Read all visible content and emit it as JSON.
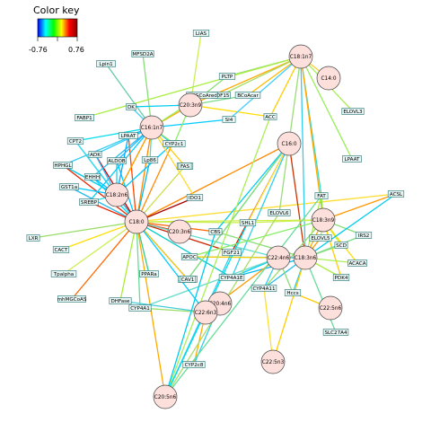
{
  "color_key": {
    "title": "Color key",
    "min_label": "-0.76",
    "max_label": "0.76",
    "gradient": [
      "#0000ff",
      "#00ffff",
      "#00ff00",
      "#ffff00",
      "#ff0000",
      "#8b0000"
    ]
  },
  "colors": {
    "node_fill": "#fde0dc",
    "node_stroke": "#444444",
    "label_fill": "#e8f7f5",
    "label_stroke": "#1f6f6f"
  },
  "nodes": [
    {
      "id": "C18:1n7",
      "label": "C18:1n7"
    },
    {
      "id": "C14:0",
      "label": "C14:0"
    },
    {
      "id": "C20:3n9",
      "label": "C20:3n9"
    },
    {
      "id": "C16:1n7",
      "label": "C16:1n7"
    },
    {
      "id": "C18:2n6",
      "label": "C18:2n6"
    },
    {
      "id": "C20:4n6",
      "label": "C20:4n6"
    },
    {
      "id": "C16:0",
      "label": "C16:0"
    },
    {
      "id": "C20:3n6",
      "label": "C20:3n6"
    },
    {
      "id": "C18:3n9",
      "label": "C18:3n9"
    },
    {
      "id": "C18:0",
      "label": "C18:0"
    },
    {
      "id": "C18:3n6",
      "label": "C18:3n6"
    },
    {
      "id": "C22:6n3",
      "label": "C22:6n3"
    },
    {
      "id": "C22:4n6",
      "label": "C22:4n6"
    },
    {
      "id": "C22:5n6",
      "label": "C22:5n6"
    },
    {
      "id": "C22:5n3",
      "label": "C22:5n3"
    },
    {
      "id": "C20:5n6",
      "label": "C20:5n6"
    }
  ],
  "genes": [
    {
      "id": "LIAS",
      "label": "LIAS"
    },
    {
      "id": "MFSD2A",
      "label": "MFSD2A"
    },
    {
      "id": "Lpin1",
      "label": "Lpin1"
    },
    {
      "id": "PLTP",
      "label": "PLTP"
    },
    {
      "id": "ELOVL3",
      "label": "ELOVL3"
    },
    {
      "id": "GDF15",
      "label": "GDF15"
    },
    {
      "id": "HMGCoAred",
      "label": "HMGCoAred"
    },
    {
      "id": "BCoAcar",
      "label": "BCoAcar"
    },
    {
      "id": "SI4",
      "label": "SI4"
    },
    {
      "id": "ACC",
      "label": "ACC"
    },
    {
      "id": "LPAAT",
      "label": "LPAAT"
    },
    {
      "id": "FABP1",
      "label": "FABP1"
    },
    {
      "id": "DK",
      "label": "DK"
    },
    {
      "id": "LPAAT2",
      "label": "LPAAT"
    },
    {
      "id": "ADRP",
      "label": "ADRP"
    },
    {
      "id": "CYP2c1",
      "label": "CYP2c1"
    },
    {
      "id": "CPT2",
      "label": "CPT2"
    },
    {
      "id": "ADK",
      "label": "ADK"
    },
    {
      "id": "ALDOB",
      "label": "ALDOB"
    },
    {
      "id": "Lp86",
      "label": "Lp86"
    },
    {
      "id": "FASN",
      "label": "FASN"
    },
    {
      "id": "HPHGL",
      "label": "HPHGL"
    },
    {
      "id": "EHHH",
      "label": "EHHH"
    },
    {
      "id": "GST1a",
      "label": "GST1a"
    },
    {
      "id": "SREBP",
      "label": "SREBP"
    },
    {
      "id": "IDO1",
      "label": "IDO1"
    },
    {
      "id": "FAS",
      "label": "FAS"
    },
    {
      "id": "ELOVL6",
      "label": "ELOVL6"
    },
    {
      "id": "FAT",
      "label": "FAT"
    },
    {
      "id": "ACSL",
      "label": "ACSL"
    },
    {
      "id": "SHL1",
      "label": "SHL1"
    },
    {
      "id": "CBS",
      "label": "CBS"
    },
    {
      "id": "ELOVL5",
      "label": "ELOVL5"
    },
    {
      "id": "FGF21",
      "label": "FGF21"
    },
    {
      "id": "APOC",
      "label": "APOC"
    },
    {
      "id": "SCD",
      "label": "SCD"
    },
    {
      "id": "IRS2",
      "label": "IRS2"
    },
    {
      "id": "ACACA",
      "label": "ACACA"
    },
    {
      "id": "LXR",
      "label": "LXR"
    },
    {
      "id": "CACT",
      "label": "CACT"
    },
    {
      "id": "PPARa",
      "label": "PPARa"
    },
    {
      "id": "PDK4",
      "label": "PDK4"
    },
    {
      "id": "ACOX1",
      "label": "ACOX1"
    },
    {
      "id": "Tpalpha",
      "label": "Tpalpha"
    },
    {
      "id": "CAV1",
      "label": "CAV1"
    },
    {
      "id": "CYP4A1E",
      "label": "CYP4A1E"
    },
    {
      "id": "CYP4A11",
      "label": "CYP4A11"
    },
    {
      "id": "mhMGCoAS",
      "label": "mhMGCoAS"
    },
    {
      "id": "DHFase",
      "label": "DHFase"
    },
    {
      "id": "Hccs",
      "label": "Hccs"
    },
    {
      "id": "CYP4A1",
      "label": "CYP4A1"
    },
    {
      "id": "SLC27A4",
      "label": "SLC27A4"
    },
    {
      "id": "CYP2c8",
      "label": "CYP2c8"
    }
  ],
  "edges": [
    {
      "a": "C18:0",
      "b": "C18:2n6",
      "color": "#cc0000"
    },
    {
      "a": "C18:0",
      "b": "C16:1n7",
      "color": "#ff8800"
    },
    {
      "a": "C18:0",
      "b": "C20:3n6",
      "color": "#ee3300"
    },
    {
      "a": "C18:0",
      "b": "FAS",
      "color": "#ccdd44"
    },
    {
      "a": "C18:0",
      "b": "IDO1",
      "color": "#aa0000"
    },
    {
      "a": "C18:0",
      "b": "CBS",
      "color": "#ff6600"
    },
    {
      "a": "C18:0",
      "b": "FGF21",
      "color": "#cc2200"
    },
    {
      "a": "C18:0",
      "b": "ACOX1",
      "color": "#2266ff"
    },
    {
      "a": "C18:0",
      "b": "CAV1",
      "color": "#ffcc00"
    },
    {
      "a": "C18:0",
      "b": "CYP4A1E",
      "color": "#00cccc"
    },
    {
      "a": "C18:0",
      "b": "LXR",
      "color": "#99dd66"
    },
    {
      "a": "C18:0",
      "b": "CACT",
      "color": "#ffdd00"
    },
    {
      "a": "C18:0",
      "b": "Tpalpha",
      "color": "#ccee55"
    },
    {
      "a": "C18:0",
      "b": "mhMGCoAS",
      "color": "#ff6600"
    },
    {
      "a": "C18:0",
      "b": "PPARa",
      "color": "#33cc88"
    },
    {
      "a": "C18:0",
      "b": "DHFase",
      "color": "#aaee33"
    },
    {
      "a": "C18:0",
      "b": "CYP4A1",
      "color": "#66dd99"
    },
    {
      "a": "C18:0",
      "b": "C22:4n6",
      "color": "#66ddcc"
    },
    {
      "a": "C18:0",
      "b": "C20:5n6",
      "color": "#ffaa00"
    },
    {
      "a": "C18:0",
      "b": "SHL1",
      "color": "#ccee55"
    },
    {
      "a": "C18:0",
      "b": "LPAAT2",
      "color": "#ff4400"
    },
    {
      "a": "C18:0",
      "b": "ADRP",
      "color": "#ff8800"
    },
    {
      "a": "C18:0",
      "b": "ADK",
      "color": "#cc0000"
    },
    {
      "a": "C18:0",
      "b": "ALDOB",
      "color": "#00ccff"
    },
    {
      "a": "C18:0",
      "b": "Lp86",
      "color": "#00bbee"
    },
    {
      "a": "C18:0",
      "b": "CPT2",
      "color": "#33ccee"
    },
    {
      "a": "C18:0",
      "b": "HPHGL",
      "color": "#ee2200"
    },
    {
      "a": "C18:0",
      "b": "EHHH",
      "color": "#00ddff"
    },
    {
      "a": "C18:0",
      "b": "GST1a",
      "color": "#22bbee"
    },
    {
      "a": "C18:0",
      "b": "SREBP",
      "color": "#ee2200"
    },
    {
      "a": "C18:0",
      "b": "C16:0",
      "color": "#ff8800"
    },
    {
      "a": "C18:0",
      "b": "ACSL",
      "color": "#ffdd33"
    },
    {
      "a": "C18:2n6",
      "b": "ADRP",
      "color": "#00ccff"
    },
    {
      "a": "C18:2n6",
      "b": "ADK",
      "color": "#33bbff"
    },
    {
      "a": "C18:2n6",
      "b": "ALDOB",
      "color": "#22ccee"
    },
    {
      "a": "C18:2n6",
      "b": "HPHGL",
      "color": "#00ccee"
    },
    {
      "a": "C18:2n6",
      "b": "EHHH",
      "color": "#00bbff"
    },
    {
      "a": "C18:2n6",
      "b": "GST1a",
      "color": "#00ccff"
    },
    {
      "a": "C18:2n6",
      "b": "SREBP",
      "color": "#22ddee"
    },
    {
      "a": "C18:2n6",
      "b": "CPT2",
      "color": "#33ddee"
    },
    {
      "a": "C18:2n6",
      "b": "LPAAT2",
      "color": "#00aaff"
    },
    {
      "a": "C18:2n6",
      "b": "C16:1n7",
      "color": "#ffcc00"
    },
    {
      "a": "C16:1n7",
      "b": "ADRP",
      "color": "#00ccff"
    },
    {
      "a": "C16:1n7",
      "b": "DK",
      "color": "#44ccee"
    },
    {
      "a": "C16:1n7",
      "b": "LPAAT2",
      "color": "#00bbff"
    },
    {
      "a": "C16:1n7",
      "b": "CPT2",
      "color": "#00ddee"
    },
    {
      "a": "C16:1n7",
      "b": "ADK",
      "color": "#33ccff"
    },
    {
      "a": "C16:1n7",
      "b": "ALDOB",
      "color": "#22bbff"
    },
    {
      "a": "C16:1n7",
      "b": "Lp86",
      "color": "#55ddaa"
    },
    {
      "a": "C16:1n7",
      "b": "CYP2c1",
      "color": "#99dd66"
    },
    {
      "a": "C16:1n7",
      "b": "FAS",
      "color": "#ffcc00"
    },
    {
      "a": "C16:1n7",
      "b": "IDO1",
      "color": "#ffdd33"
    },
    {
      "a": "C16:1n7",
      "b": "C20:3n9",
      "color": "#ffaa00"
    },
    {
      "a": "C16:1n7",
      "b": "SI4",
      "color": "#00ccff"
    },
    {
      "a": "C16:1n7",
      "b": "MFSD2A",
      "color": "#88dd77"
    },
    {
      "a": "C16:1n7",
      "b": "Lpin1",
      "color": "#66ccaa"
    },
    {
      "a": "C16:1n7",
      "b": "HMGCoAred",
      "color": "#99ee55"
    },
    {
      "a": "C16:1n7",
      "b": "HPHGL",
      "color": "#33ccee"
    },
    {
      "a": "C16:1n7",
      "b": "SREBP",
      "color": "#00ccff"
    },
    {
      "a": "C16:1n7",
      "b": "EHHH",
      "color": "#33bbee"
    },
    {
      "a": "C16:1n7",
      "b": "C18:2n6",
      "color": "#ff9900"
    },
    {
      "a": "C20:3n9",
      "b": "PLTP",
      "color": "#88dd77"
    },
    {
      "a": "C20:3n9",
      "b": "HMGCoAred",
      "color": "#aaee44"
    },
    {
      "a": "C20:3n9",
      "b": "BCoAcar",
      "color": "#77dd88"
    },
    {
      "a": "C20:3n9",
      "b": "ACC",
      "color": "#ffdd00"
    },
    {
      "a": "C20:3n9",
      "b": "LIAS",
      "color": "#ccee55"
    },
    {
      "a": "C20:3n9",
      "b": "DK",
      "color": "#00ccee"
    },
    {
      "a": "C20:3n9",
      "b": "CYP2c1",
      "color": "#88ee66"
    },
    {
      "a": "C20:3n9",
      "b": "C18:1n7",
      "color": "#ffaa00"
    },
    {
      "a": "C18:1n7",
      "b": "ACC",
      "color": "#ffcc00"
    },
    {
      "a": "C18:1n7",
      "b": "SI4",
      "color": "#44ccff"
    },
    {
      "a": "C18:1n7",
      "b": "PLTP",
      "color": "#99dd77"
    },
    {
      "a": "C18:1n7",
      "b": "GDF15",
      "color": "#aadd66"
    },
    {
      "a": "C18:1n7",
      "b": "LPAAT",
      "color": "#99ee55"
    },
    {
      "a": "C18:1n7",
      "b": "FABP1",
      "color": "#aaee44"
    },
    {
      "a": "C18:1n7",
      "b": "ELOVL3",
      "color": "#aaee55"
    },
    {
      "a": "C18:1n7",
      "b": "C14:0",
      "color": "#ffcc33"
    },
    {
      "a": "C18:1n7",
      "b": "ELOVL6",
      "color": "#99dd77"
    },
    {
      "a": "C18:1n7",
      "b": "FAT",
      "color": "#33ddcc"
    },
    {
      "a": "C18:1n7",
      "b": "C18:3n9",
      "color": "#ffaa00"
    },
    {
      "a": "C18:1n7",
      "b": "C18:3n6",
      "color": "#33ccee"
    },
    {
      "a": "C18:1n7",
      "b": "BCoAcar",
      "color": "#ffbb00"
    },
    {
      "a": "C16:0",
      "b": "FGF21",
      "color": "#cc2200"
    },
    {
      "a": "C16:0",
      "b": "CBS",
      "color": "#00ccee"
    },
    {
      "a": "C16:0",
      "b": "SHL1",
      "color": "#ffee44"
    },
    {
      "a": "C16:0",
      "b": "ACOX1",
      "color": "#33ccee"
    },
    {
      "a": "C16:0",
      "b": "CAV1",
      "color": "#88dd77"
    },
    {
      "a": "C16:0",
      "b": "C18:3n6",
      "color": "#cc3300"
    },
    {
      "a": "C16:0",
      "b": "CYP4A1E",
      "color": "#33ccee"
    },
    {
      "a": "C18:3n9",
      "b": "FAT",
      "color": "#99ee55"
    },
    {
      "a": "C18:3n9",
      "b": "ELOVL5",
      "color": "#aaee55"
    },
    {
      "a": "C18:3n9",
      "b": "SCD",
      "color": "#ccee44"
    },
    {
      "a": "C18:3n9",
      "b": "IRS2",
      "color": "#88dd77"
    },
    {
      "a": "C18:3n9",
      "b": "ACACA",
      "color": "#ffdd00"
    },
    {
      "a": "C18:3n9",
      "b": "PDK4",
      "color": "#ffcc00"
    },
    {
      "a": "C18:3n9",
      "b": "APOC",
      "color": "#88ee66"
    },
    {
      "a": "C18:3n9",
      "b": "ACSL",
      "color": "#ff9900"
    },
    {
      "a": "C18:3n9",
      "b": "SHL1",
      "color": "#ccee55"
    },
    {
      "a": "C18:3n9",
      "b": "C18:3n6",
      "color": "#ffaa00"
    },
    {
      "a": "C18:3n9",
      "b": "C18:0",
      "color": "#ccee44"
    },
    {
      "a": "C18:3n9",
      "b": "CYP4A11",
      "color": "#99dd66"
    },
    {
      "a": "C18:3n6",
      "b": "ELOVL5",
      "color": "#ff9900"
    },
    {
      "a": "C18:3n6",
      "b": "FAT",
      "color": "#aaee44"
    },
    {
      "a": "C18:3n6",
      "b": "ACSL",
      "color": "#00ccee"
    },
    {
      "a": "C18:3n6",
      "b": "SCD",
      "color": "#99dd77"
    },
    {
      "a": "C18:3n6",
      "b": "IRS2",
      "color": "#77dd88"
    },
    {
      "a": "C18:3n6",
      "b": "ACACA",
      "color": "#aaee55"
    },
    {
      "a": "C18:3n6",
      "b": "PDK4",
      "color": "#aaee44"
    },
    {
      "a": "C18:3n6",
      "b": "Hccs",
      "color": "#33ccee"
    },
    {
      "a": "C18:3n6",
      "b": "CYP4A11",
      "color": "#22bbee"
    },
    {
      "a": "C18:3n6",
      "b": "C22:5n3",
      "color": "#ffcc00"
    },
    {
      "a": "C18:3n6",
      "b": "SLC27A4",
      "color": "#66dd99"
    },
    {
      "a": "C18:3n6",
      "b": "C22:4n6",
      "color": "#ff9900"
    },
    {
      "a": "C18:3n6",
      "b": "CBS",
      "color": "#88dd77"
    },
    {
      "a": "C18:3n6",
      "b": "APOC",
      "color": "#33ccee"
    },
    {
      "a": "C18:3n6",
      "b": "CYP4A1E",
      "color": "#00bbee"
    },
    {
      "a": "C22:4n6",
      "b": "CYP4A1E",
      "color": "#00ccff"
    },
    {
      "a": "C22:4n6",
      "b": "CYP4A11",
      "color": "#33ccee"
    },
    {
      "a": "C22:4n6",
      "b": "CYP4A1",
      "color": "#66ddcc"
    },
    {
      "a": "C22:4n6",
      "b": "Hccs",
      "color": "#88dd77"
    },
    {
      "a": "C22:4n6",
      "b": "APOC",
      "color": "#ffcc00"
    },
    {
      "a": "C22:4n6",
      "b": "C22:6n3",
      "color": "#ff9900"
    },
    {
      "a": "C22:6n3",
      "b": "CYP2c8",
      "color": "#ffaa00"
    },
    {
      "a": "C22:6n3",
      "b": "C20:4n6",
      "color": "#ffcc00"
    },
    {
      "a": "C22:6n3",
      "b": "DHFase",
      "color": "#44ccdd"
    },
    {
      "a": "C22:6n3",
      "b": "CYP4A1",
      "color": "#99dd66"
    },
    {
      "a": "C22:6n3",
      "b": "C18:0",
      "color": "#00ccff"
    },
    {
      "a": "C20:4n6",
      "b": "CYP2c8",
      "color": "#33ccee"
    },
    {
      "a": "C22:5n6",
      "b": "Hccs",
      "color": "#ffcc00"
    },
    {
      "a": "C22:5n3",
      "b": "CYP4A11",
      "color": "#ffdd33"
    },
    {
      "a": "C20:5n6",
      "b": "ACC",
      "color": "#aaee55"
    },
    {
      "a": "C20:5n6",
      "b": "ELOVL6",
      "color": "#aadd66"
    },
    {
      "a": "C20:5n6",
      "b": "FGF21",
      "color": "#33ccee"
    },
    {
      "a": "C20:5n6",
      "b": "CBS",
      "color": "#00ccee"
    },
    {
      "a": "C20:5n6",
      "b": "SHL1",
      "color": "#00ddee"
    },
    {
      "a": "C20:5n6",
      "b": "FAT",
      "color": "#66dd99"
    }
  ]
}
